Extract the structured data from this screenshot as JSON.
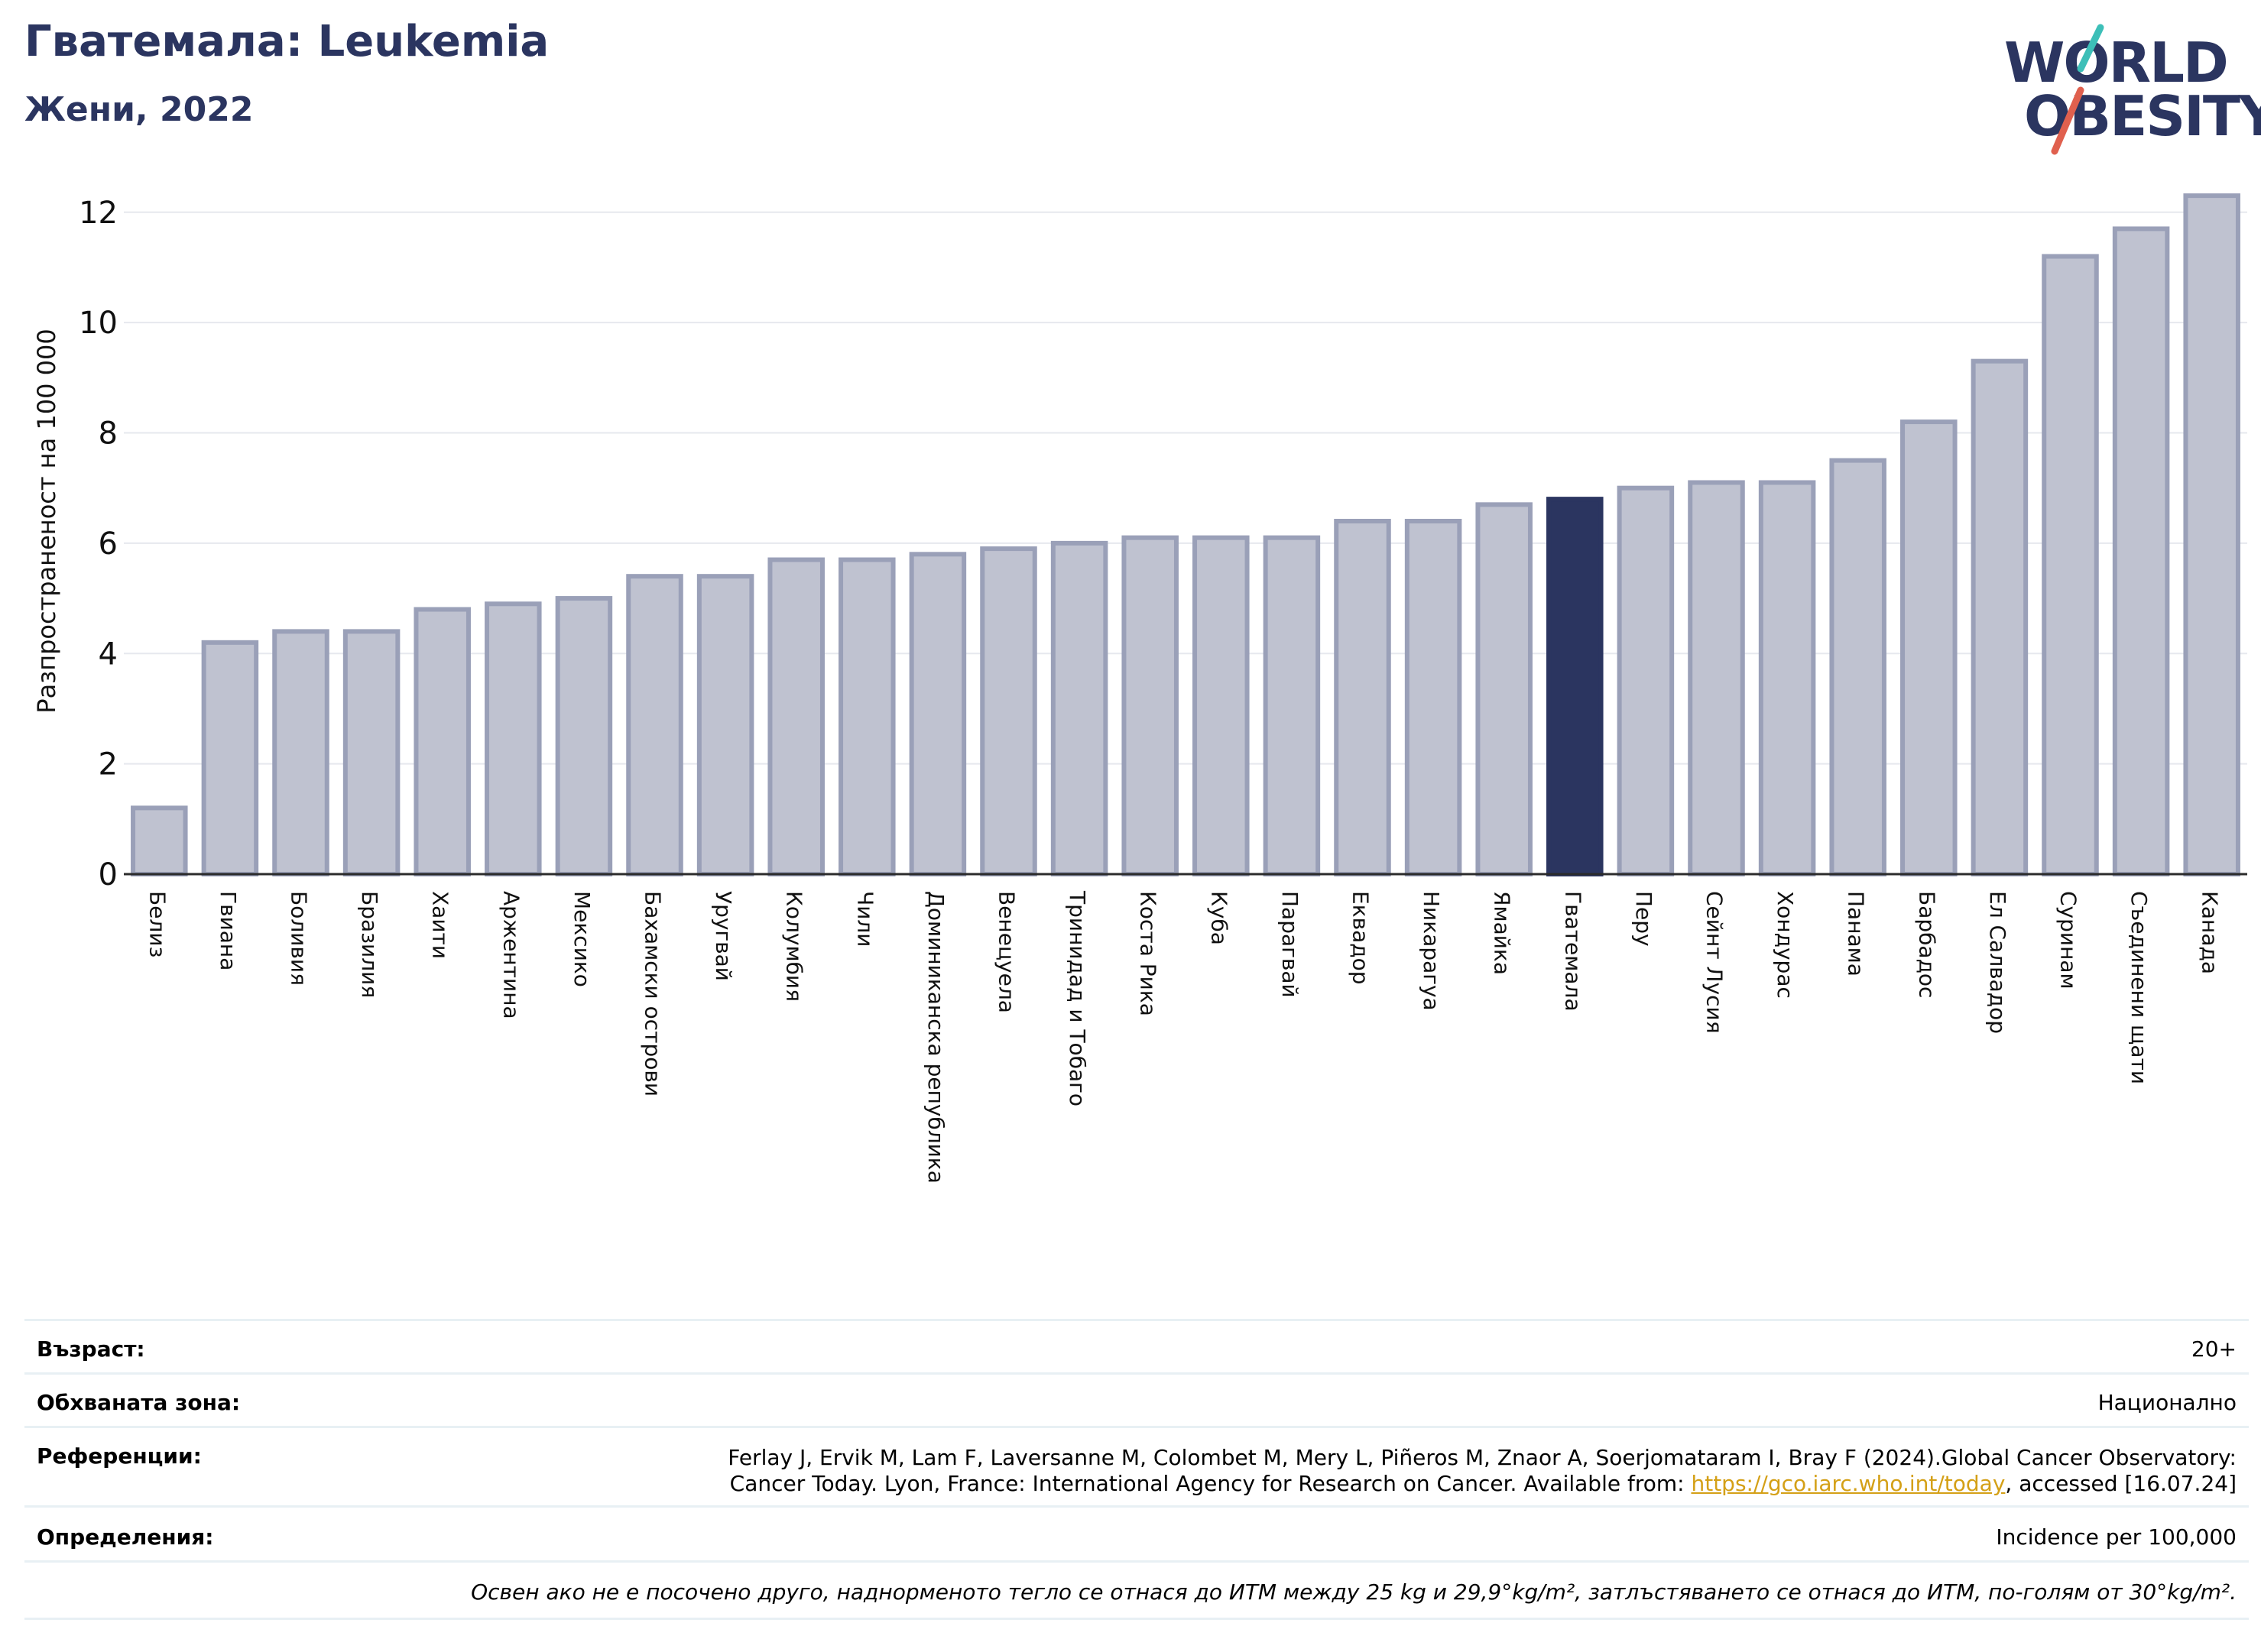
{
  "header": {
    "title": "Гватемала: Leukemia",
    "subtitle": "Жени, 2022"
  },
  "logo": {
    "line1": "WORLD",
    "line2": "OBESITY",
    "colors": {
      "text": "#2b3560",
      "slash_teal": "#3dbfb8",
      "slash_red": "#e0604e"
    }
  },
  "chart_data": {
    "type": "bar",
    "title": "Гватемала: Leukemia",
    "subtitle": "Жени, 2022",
    "ylabel": "Разпространеност  на 100 000",
    "xlabel": "",
    "ylim": [
      0,
      12.8
    ],
    "yticks": [
      0,
      2,
      4,
      6,
      8,
      10,
      12
    ],
    "grid": true,
    "highlight": "Гватемала",
    "colors": {
      "bar": "#bfc2d0",
      "bar_edge": "#9aa0b8",
      "highlight": "#2b3560"
    },
    "categories": [
      "Белиз",
      "Гвиана",
      "Боливия",
      "Бразилия",
      "Хаити",
      "Аржентина",
      "Мексико",
      "Бахамски острови",
      "Уругвай",
      "Колумбия",
      "Чили",
      "Доминиканска република",
      "Венецуела",
      "Тринидад и Тобаго",
      "Коста Рика",
      "Куба",
      "Парагвай",
      "Еквадор",
      "Никарагуа",
      "Ямайка",
      "Гватемала",
      "Перу",
      "Сейнт Лусия",
      "Хондурас",
      "Панама",
      "Барбадос",
      "Ел Салвадор",
      "Суринам",
      "Съединени щати",
      "Канада"
    ],
    "values": [
      1.2,
      4.2,
      4.4,
      4.4,
      4.8,
      4.9,
      5.0,
      5.4,
      5.4,
      5.7,
      5.7,
      5.8,
      5.9,
      6.0,
      6.1,
      6.1,
      6.1,
      6.4,
      6.4,
      6.7,
      6.8,
      7.0,
      7.1,
      7.1,
      7.5,
      8.2,
      9.3,
      11.2,
      11.7,
      12.3
    ]
  },
  "info": {
    "age_label": "Възраст:",
    "age_value": "20+",
    "area_label": "Обхваната зона:",
    "area_value": "Национално",
    "refs_label": "Референции:",
    "refs_value_line1": "Ferlay J, Ervik M, Lam F, Laversanne M, Colombet M, Mery L, Piñeros M, Znaor A, Soerjomataram I, Bray F (2024).Global Cancer Observatory:",
    "refs_value_line2_pre": "Cancer Today. Lyon, France: International Agency for Research on Cancer. Available from: ",
    "refs_link": "https://gco.iarc.who.int/today",
    "refs_value_line2_post": ", accessed [16.07.24]",
    "defs_label": "Определения:",
    "defs_value": "Incidence per 100,000",
    "footnote": "Освен ако не е посочено друго, наднорменото тегло се отнася до ИТМ между 25 kg и 29,9°kg/m², затлъстяването се отнася до ИТМ, по-голям от 30°kg/m²."
  }
}
